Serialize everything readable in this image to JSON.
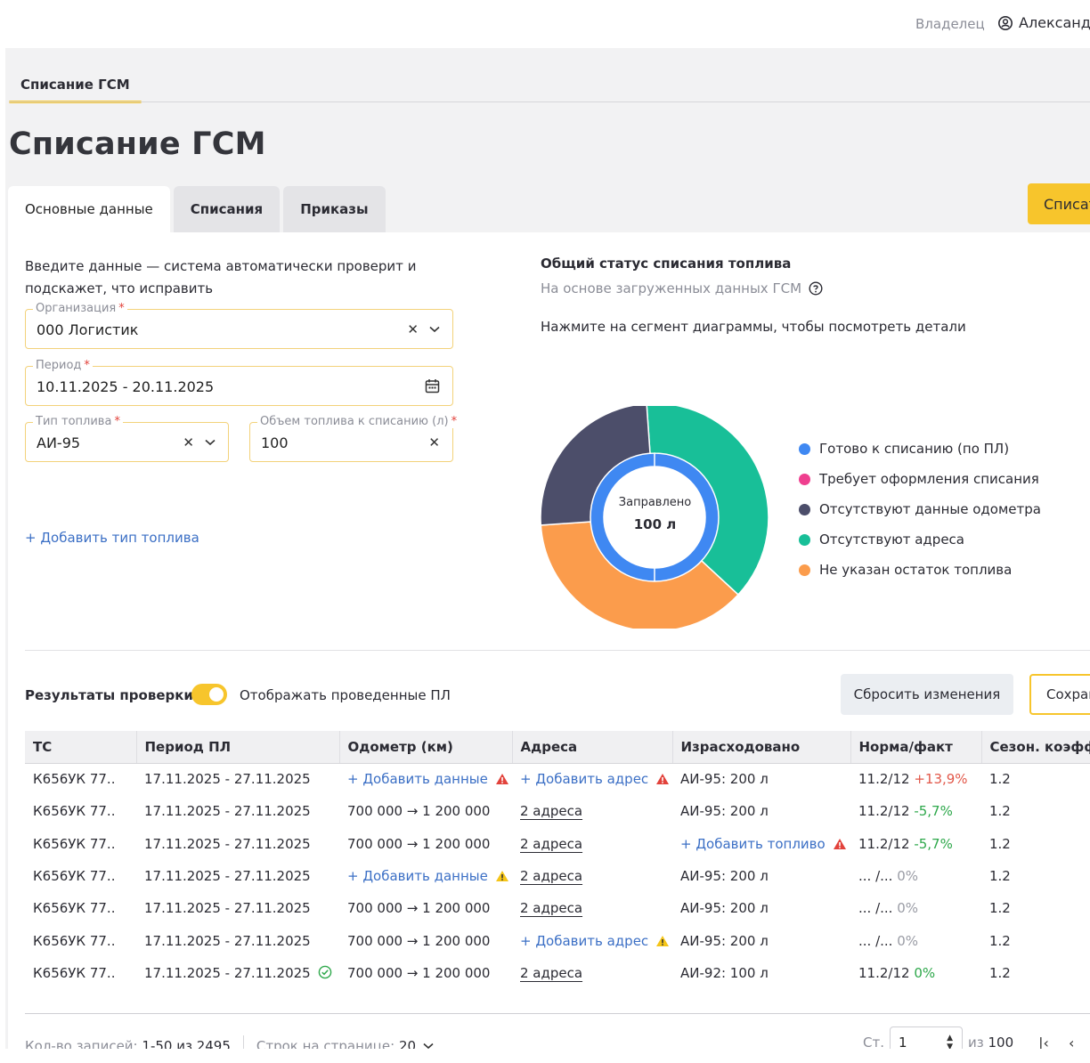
{
  "header": {
    "role": "Владелец",
    "user_name": "Александр"
  },
  "page_tab": "Списание ГСМ",
  "page_title": "Списание ГСМ",
  "subtabs": [
    "Основные данные",
    "Списания",
    "Приказы"
  ],
  "primary_action": "Списать",
  "form": {
    "hint": "Введите данные — система автоматически проверит и подскажет, что исправить",
    "organization": {
      "label": "Организация",
      "value": "000 Логистик"
    },
    "period": {
      "label": "Период",
      "value": "10.11.2025 - 20.11.2025"
    },
    "fuel_type": {
      "label": "Тип топлива",
      "value": "АИ-95"
    },
    "fuel_volume": {
      "label": "Объем топлива к списанию (л)",
      "value": "100"
    },
    "add_fuel_type": "+ Добавить тип топлива"
  },
  "status": {
    "title": "Общий статус списания топлива",
    "subtitle": "На основе загруженных данных ГСМ",
    "hint": "Нажмите на сегмент диаграммы, чтобы посмотреть детали",
    "center_label": "Заправлено",
    "center_value": "100 л"
  },
  "chart_data": {
    "type": "pie",
    "title": "Общий статус списания топлива",
    "outer": {
      "categories": [
        "Отсутствуют адреса",
        "Не указан остаток топлива",
        "Отсутствуют данные одометра"
      ],
      "values": [
        38,
        37,
        25
      ],
      "colors": [
        "#18bf98",
        "#fb9c4c",
        "#4c4e6a"
      ]
    },
    "inner": {
      "categories": [
        "Готово к списанию (по ПЛ)"
      ],
      "values": [
        100
      ],
      "colors": [
        "#3f88f2"
      ]
    },
    "legend": [
      {
        "label": "Готово к списанию (по ПЛ)",
        "color": "#3f88f2"
      },
      {
        "label": "Требует оформления списания",
        "color": "#ef3f8f"
      },
      {
        "label": "Отсутствуют данные одометра",
        "color": "#4c4e6a"
      },
      {
        "label": "Отсутствуют адреса",
        "color": "#18bf98"
      },
      {
        "label": "Не указан остаток топлива",
        "color": "#fb9c4c"
      }
    ],
    "legend_position": "right"
  },
  "results": {
    "title": "Результаты проверки",
    "toggle_label": "Отображать проведенные ПЛ",
    "toggle_on": true,
    "reset_label": "Сбросить изменения",
    "save_label": "Сохранить",
    "columns": [
      "ТС",
      "Период ПЛ",
      "Одометр (км)",
      "Адреса",
      "Израсходовано",
      "Норма/факт",
      "Сезон. коэфф."
    ],
    "rows": [
      {
        "vehicle": "К656УК 77..",
        "period": "17.11.2025 - 27.11.2025",
        "period_ok": false,
        "odometer": "+ Добавить данные",
        "odometer_link": true,
        "odometer_warn": "red",
        "addresses": "+ Добавить адрес",
        "addresses_link": true,
        "addresses_warn": "red",
        "consumed": "АИ-95: 200 л",
        "consumed_link": false,
        "consumed_warn": "",
        "norm": "11.2/12",
        "delta": "+13,9%",
        "delta_kind": "pos",
        "season": "1.2"
      },
      {
        "vehicle": "К656УК 77..",
        "period": "17.11.2025 - 27.11.2025",
        "period_ok": false,
        "odometer": "700 000 → 1 200 000",
        "odometer_link": false,
        "odometer_warn": "",
        "addresses": "2 адреса",
        "addresses_link": false,
        "addresses_warn": "",
        "consumed": "АИ-95: 200 л",
        "consumed_link": false,
        "consumed_warn": "",
        "norm": "11.2/12",
        "delta": "-5,7%",
        "delta_kind": "neg",
        "season": "1.2"
      },
      {
        "vehicle": "К656УК 77..",
        "period": "17.11.2025 - 27.11.2025",
        "period_ok": false,
        "odometer": "700 000 → 1 200 000",
        "odometer_link": false,
        "odometer_warn": "",
        "addresses": "2 адреса",
        "addresses_link": false,
        "addresses_warn": "",
        "consumed": "+ Добавить топливо",
        "consumed_link": true,
        "consumed_warn": "red",
        "norm": "11.2/12",
        "delta": "-5,7%",
        "delta_kind": "neg",
        "season": "1.2"
      },
      {
        "vehicle": "К656УК 77..",
        "period": "17.11.2025 - 27.11.2025",
        "period_ok": false,
        "odometer": "+ Добавить данные",
        "odometer_link": true,
        "odometer_warn": "yellow",
        "addresses": "2 адреса",
        "addresses_link": false,
        "addresses_warn": "",
        "consumed": "АИ-95: 200 л",
        "consumed_link": false,
        "consumed_warn": "",
        "norm": "... /...",
        "delta": "0%",
        "delta_kind": "grey",
        "season": "1.2"
      },
      {
        "vehicle": "К656УК 77..",
        "period": "17.11.2025 - 27.11.2025",
        "period_ok": false,
        "odometer": "700 000 → 1 200 000",
        "odometer_link": false,
        "odometer_warn": "",
        "addresses": "2 адреса",
        "addresses_link": false,
        "addresses_warn": "",
        "consumed": "АИ-95: 200 л",
        "consumed_link": false,
        "consumed_warn": "",
        "norm": "... /...",
        "delta": "0%",
        "delta_kind": "grey",
        "season": "1.2"
      },
      {
        "vehicle": "К656УК 77..",
        "period": "17.11.2025 - 27.11.2025",
        "period_ok": false,
        "odometer": "700 000 → 1 200 000",
        "odometer_link": false,
        "odometer_warn": "",
        "addresses": "+ Добавить адрес",
        "addresses_link": true,
        "addresses_warn": "yellow",
        "consumed": "АИ-95: 200 л",
        "consumed_link": false,
        "consumed_warn": "",
        "norm": "... /...",
        "delta": "0%",
        "delta_kind": "grey",
        "season": "1.2"
      },
      {
        "vehicle": "К656УК 77..",
        "period": "17.11.2025 - 27.11.2025",
        "period_ok": true,
        "odometer": "700 000 → 1 200 000",
        "odometer_link": false,
        "odometer_warn": "",
        "addresses": "2 адреса",
        "addresses_link": false,
        "addresses_warn": "",
        "consumed": "АИ-92: 100 л",
        "consumed_link": false,
        "consumed_warn": "",
        "norm": "11.2/12",
        "delta": "0%",
        "delta_kind": "neg",
        "season": "1.2"
      }
    ]
  },
  "pagination": {
    "records_label": "Кол-во записей:",
    "records_value": "1-50 из 2495",
    "rows_per_page_label": "Строк на странице:",
    "rows_per_page_value": "20",
    "page_label": "Ст.",
    "page_value": "1",
    "of_label": "из",
    "total_pages": "100"
  },
  "colors": {
    "accent": "#f7c52c",
    "link": "#3b6fc5",
    "warn_red": "#e2423b",
    "warn_yellow": "#f5c518",
    "ok_green": "#2ea84b"
  }
}
